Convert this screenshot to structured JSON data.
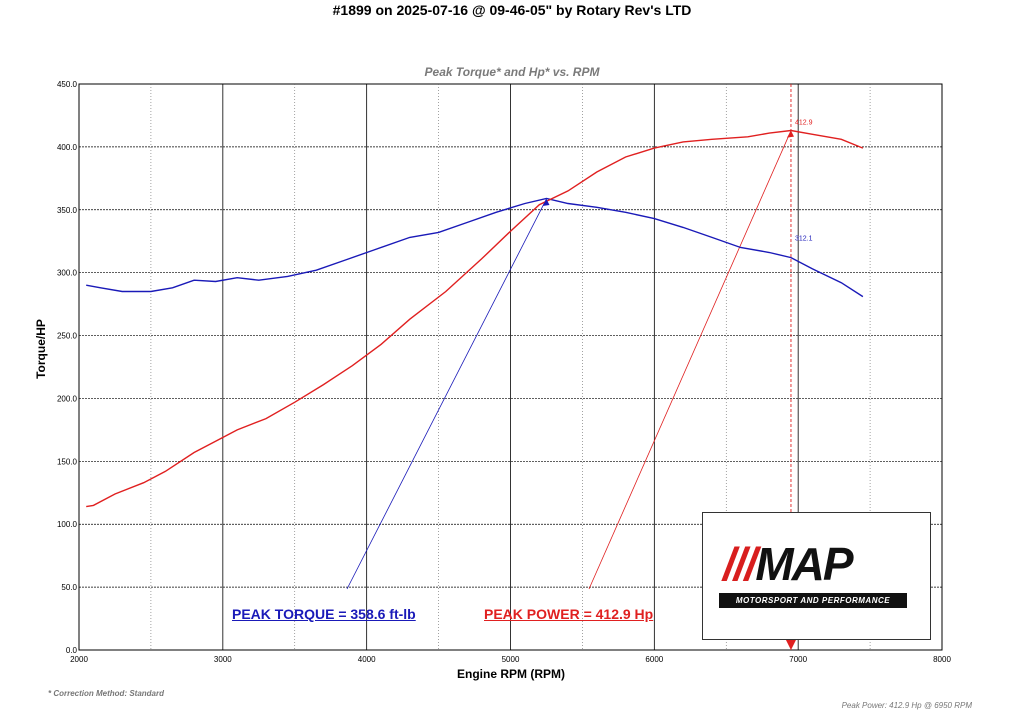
{
  "header": {
    "title": "#1899 on 2025-07-16 @ 09-46-05\" by Rotary Rev's LTD"
  },
  "chart_data": {
    "type": "line",
    "title": "Peak Torque* and Hp* vs. RPM",
    "xlabel": "Engine RPM (RPM)",
    "ylabel": "Torque/HP",
    "xlim": [
      2000,
      8000
    ],
    "ylim": [
      0,
      450
    ],
    "x_ticks": [
      "2000",
      "3000",
      "4000",
      "5000",
      "6000",
      "7000",
      "8000"
    ],
    "y_ticks": [
      "0.0",
      "50.0",
      "100.0",
      "150.0",
      "200.0",
      "250.0",
      "300.0",
      "350.0",
      "400.0",
      "450.0"
    ],
    "grid": true,
    "series": [
      {
        "name": "Torque",
        "color": "#1a1ab8",
        "x": [
          2050,
          2150,
          2300,
          2500,
          2650,
          2800,
          2950,
          3100,
          3250,
          3450,
          3650,
          3850,
          4050,
          4300,
          4500,
          4700,
          4900,
          5100,
          5250,
          5400,
          5600,
          5800,
          6000,
          6200,
          6400,
          6600,
          6800,
          6950,
          7100,
          7300,
          7450
        ],
        "values": [
          290,
          288,
          285,
          285,
          288,
          294,
          293,
          296,
          294,
          297,
          302,
          310,
          318,
          328,
          332,
          340,
          348,
          355,
          359,
          355,
          352,
          348,
          343,
          336,
          328,
          320,
          316,
          312,
          303,
          292,
          281
        ]
      },
      {
        "name": "Power",
        "color": "#e02020",
        "x": [
          2050,
          2100,
          2250,
          2450,
          2600,
          2800,
          2950,
          3100,
          3300,
          3500,
          3700,
          3900,
          4100,
          4300,
          4550,
          4800,
          5000,
          5200,
          5400,
          5600,
          5800,
          6000,
          6200,
          6400,
          6650,
          6800,
          6950,
          7100,
          7300,
          7450
        ],
        "values": [
          114,
          115,
          124,
          133,
          142,
          157,
          166,
          175,
          184,
          197,
          211,
          226,
          243,
          263,
          285,
          311,
          333,
          354,
          365,
          380,
          392,
          399,
          404,
          406,
          408,
          411,
          413,
          410,
          406,
          399
        ]
      }
    ],
    "peaks": {
      "torque": {
        "rpm": 5250,
        "value": 358.6,
        "text": "PEAK TORQUE = 358.6 ft-lb"
      },
      "power": {
        "rpm": 6950,
        "value": 412.9,
        "text": "PEAK POWER = 412.9 Hp"
      }
    },
    "annotations": {
      "power_value_label": "412.9",
      "torque_value_label": "312.1",
      "cursor_rpm": 6950,
      "cursor_label": "6950"
    }
  },
  "logo": {
    "mark_bars": "///",
    "mark_text": "MAP",
    "subtitle": "MOTORSPORT AND PERFORMANCE"
  },
  "footnote": "* Correction Method: Standard",
  "footer_right": "Peak Power: 412.9 Hp @ 6950 RPM"
}
